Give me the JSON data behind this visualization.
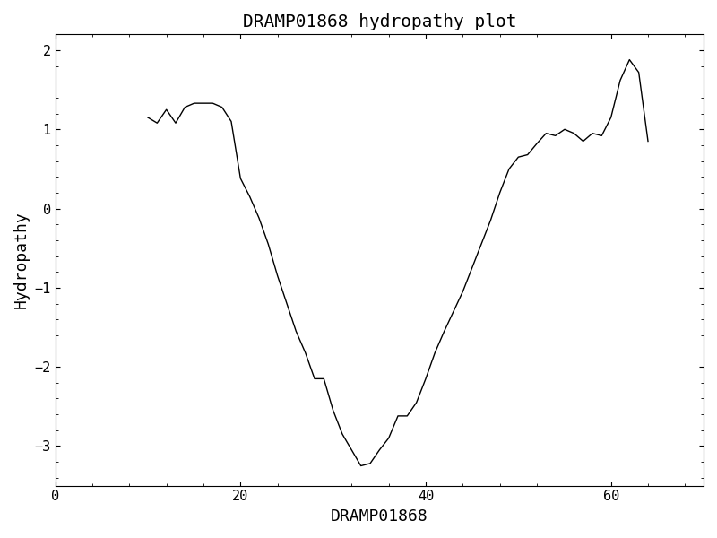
{
  "title": "DRAMP01868 hydropathy plot",
  "xlabel": "DRAMP01868",
  "ylabel": "Hydropathy",
  "xlim": [
    0,
    70
  ],
  "ylim": [
    -3.5,
    2.2
  ],
  "xticks": [
    0,
    20,
    40,
    60
  ],
  "yticks": [
    -3,
    -2,
    -1,
    0,
    1,
    2
  ],
  "line_color": "#000000",
  "background_color": "#ffffff",
  "x": [
    10,
    11,
    12,
    13,
    14,
    15,
    16,
    17,
    18,
    19,
    20,
    21,
    22,
    23,
    24,
    25,
    26,
    27,
    28,
    29,
    30,
    31,
    32,
    33,
    34,
    35,
    36,
    37,
    38,
    39,
    40,
    41,
    42,
    43,
    44,
    45,
    46,
    47,
    48,
    49,
    50,
    51,
    52,
    53,
    54,
    55,
    56,
    57,
    58,
    59,
    60,
    61,
    62,
    63,
    64
  ],
  "y": [
    1.15,
    1.08,
    1.25,
    1.08,
    1.28,
    1.33,
    1.33,
    1.33,
    1.28,
    1.1,
    0.38,
    0.15,
    -0.12,
    -0.45,
    -0.85,
    -1.2,
    -1.55,
    -1.82,
    -2.15,
    -2.15,
    -2.55,
    -2.85,
    -3.05,
    -3.25,
    -3.22,
    -3.05,
    -2.9,
    -2.62,
    -2.62,
    -2.45,
    -2.15,
    -1.82,
    -1.55,
    -1.3,
    -1.05,
    -0.75,
    -0.45,
    -0.15,
    0.2,
    0.5,
    0.65,
    0.68,
    0.82,
    0.95,
    0.92,
    1.0,
    0.95,
    0.85,
    0.95,
    0.92,
    1.15,
    1.62,
    1.88,
    1.72,
    0.85
  ]
}
